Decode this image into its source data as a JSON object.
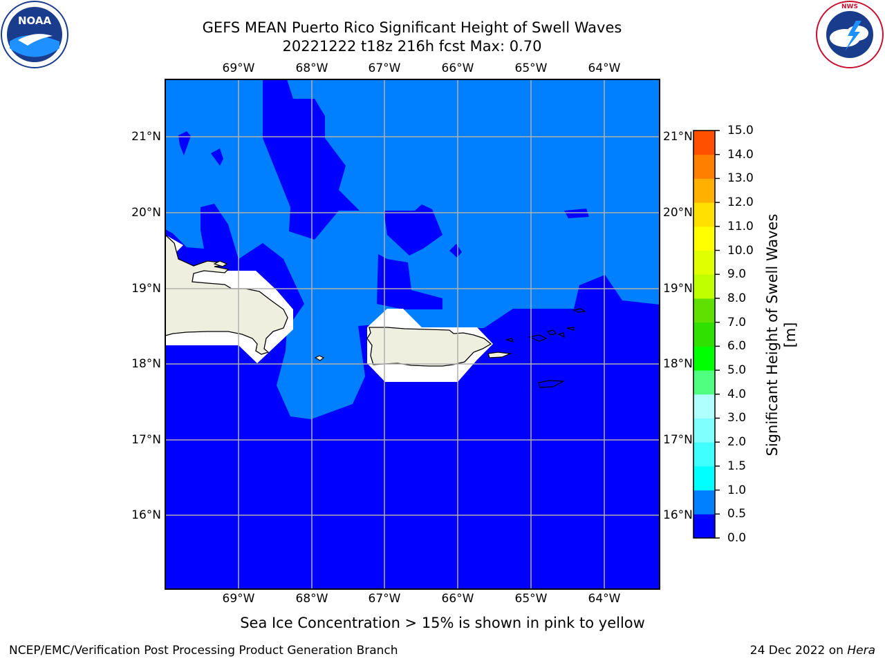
{
  "title": {
    "line1": "GEFS MEAN Puerto Rico Significant Height of Swell Waves",
    "line2": "20221222 t18z 216h fcst   Max: 0.70"
  },
  "map": {
    "lon_labels": [
      "69°W",
      "68°W",
      "67°W",
      "66°W",
      "65°W",
      "64°W"
    ],
    "lat_labels": [
      "21°N",
      "20°N",
      "19°N",
      "18°N",
      "17°N",
      "16°N"
    ],
    "colors": {
      "band_0_0_5": "#0000ff",
      "band_0_5_1_0": "#0080ff",
      "land": "#efefdf",
      "grid": "#b0b0b0"
    }
  },
  "colorbar": {
    "label": "Significant Height of Swell Waves [m]",
    "ticks": [
      "15.0",
      "14.0",
      "13.0",
      "12.0",
      "11.0",
      "10.0",
      "9.0",
      "8.0",
      "7.0",
      "6.0",
      "5.0",
      "4.0",
      "3.0",
      "2.0",
      "1.5",
      "1.0",
      "0.5",
      "0.0"
    ],
    "bands_bottom_to_top": [
      "#0000ff",
      "#0080ff",
      "#00ffff",
      "#40ffff",
      "#80ffff",
      "#b0ffff",
      "#50ff80",
      "#00ff00",
      "#30e000",
      "#60e000",
      "#c0ff00",
      "#e0ff00",
      "#ffff00",
      "#ffe000",
      "#ffb000",
      "#ff8000",
      "#ff5000",
      "#ff2000",
      "#ff0000"
    ]
  },
  "logos": {
    "left": "NOAA",
    "right": "NATIONAL WEATHER SERVICE"
  },
  "footer": {
    "note": "Sea Ice Concentration > 15% is shown in pink to yellow",
    "left": "NCEP/EMC/Verification Post Processing Product Generation Branch",
    "right_date": "24 Dec 2022 on",
    "right_machine": "Hera"
  }
}
